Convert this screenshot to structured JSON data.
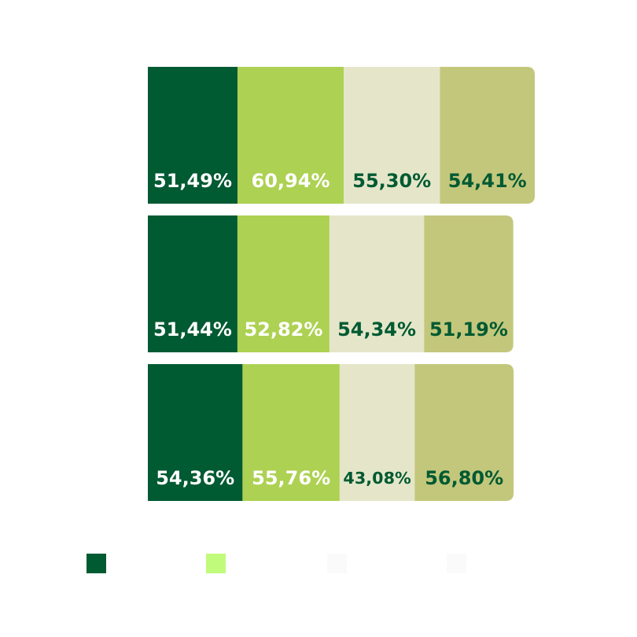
{
  "chart_data": {
    "type": "stacked_bar_horizontal",
    "categories": [
      null,
      null,
      null
    ],
    "series": [
      {
        "color": "#005a32",
        "label_color": "#ffffff",
        "values": [
          51.49,
          51.44,
          54.36
        ],
        "value_labels": [
          "51,49%",
          "51,44%",
          "54,36%"
        ]
      },
      {
        "color": "#add152",
        "label_color": "#ffffff",
        "values": [
          60.94,
          52.82,
          55.76
        ],
        "value_labels": [
          "60,94%",
          "52,82%",
          "55,76%"
        ]
      },
      {
        "color": "#e5e6c9",
        "label_color": "#005a32",
        "values": [
          55.3,
          54.34,
          43.08
        ],
        "value_labels": [
          "55,30%",
          "54,34%",
          "43,08%"
        ]
      },
      {
        "color": "#c3c77b",
        "label_color": "#005a32",
        "values": [
          54.41,
          51.19,
          56.8
        ],
        "value_labels": [
          "54,41%",
          "51,19%",
          "56,80%"
        ]
      }
    ],
    "legend": {
      "colors": [
        "#005a32",
        "#c0fb7c",
        "#fafafa",
        "#fafafa"
      ]
    }
  }
}
